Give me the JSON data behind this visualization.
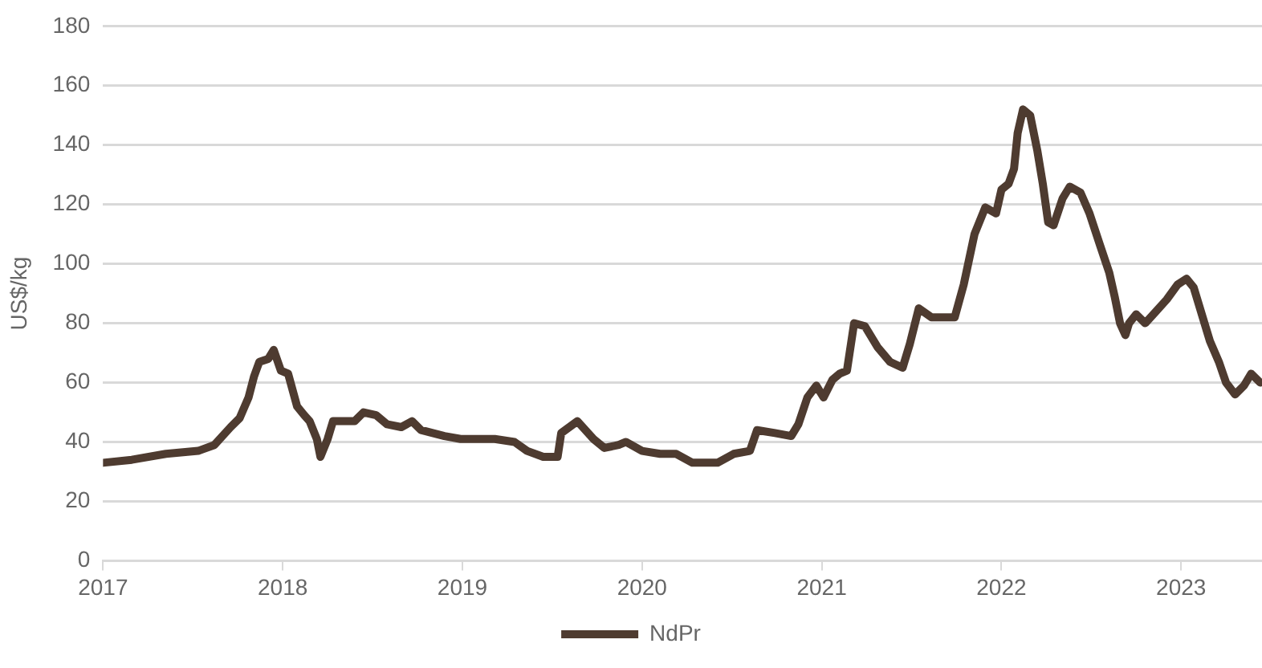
{
  "chart_data": {
    "type": "line",
    "ylabel": "US$/kg",
    "xlim": [
      2017,
      2023.45
    ],
    "xticks": [
      2017,
      2018,
      2019,
      2020,
      2021,
      2022,
      2023
    ],
    "ylim": [
      0,
      180
    ],
    "yticks": [
      0,
      20,
      40,
      60,
      80,
      100,
      120,
      140,
      160,
      180
    ],
    "grid": "y",
    "legend": "bottom",
    "marker": "none",
    "line_style": "solid",
    "series": [
      {
        "name": "NdPr",
        "color": "#4e3b30",
        "x": [
          2017,
          2017.16,
          2017.35,
          2017.53,
          2017.62,
          2017.71,
          2017.76,
          2017.81,
          2017.84,
          2017.87,
          2017.92,
          2017.95,
          2017.99,
          2018.03,
          2018.08,
          2018.12,
          2018.15,
          2018.19,
          2018.21,
          2018.25,
          2018.28,
          2018.4,
          2018.45,
          2018.52,
          2018.58,
          2018.66,
          2018.72,
          2018.77,
          2018.9,
          2018.99,
          2019.18,
          2019.29,
          2019.36,
          2019.45,
          2019.53,
          2019.55,
          2019.64,
          2019.73,
          2019.79,
          2019.87,
          2019.91,
          2020,
          2020.1,
          2020.19,
          2020.28,
          2020.42,
          2020.51,
          2020.6,
          2020.64,
          2020.74,
          2020.83,
          2020.87,
          2020.92,
          2020.97,
          2021.01,
          2021.06,
          2021.1,
          2021.14,
          2021.18,
          2021.24,
          2021.31,
          2021.38,
          2021.45,
          2021.49,
          2021.54,
          2021.61,
          2021.74,
          2021.79,
          2021.85,
          2021.91,
          2021.97,
          2022,
          2022.04,
          2022.07,
          2022.09,
          2022.12,
          2022.16,
          2022.2,
          2022.23,
          2022.26,
          2022.29,
          2022.34,
          2022.38,
          2022.44,
          2022.49,
          2022.55,
          2022.6,
          2022.63,
          2022.66,
          2022.69,
          2022.71,
          2022.75,
          2022.8,
          2022.86,
          2022.92,
          2022.98,
          2023.03,
          2023.07,
          2023.12,
          2023.16,
          2023.21,
          2023.25,
          2023.3,
          2023.35,
          2023.39,
          2023.44
        ],
        "values": [
          33,
          34,
          36,
          37,
          39,
          45,
          48,
          55,
          62,
          67,
          68,
          71,
          64,
          63,
          52,
          49,
          47,
          41,
          35,
          41,
          47,
          47,
          50,
          49,
          46,
          45,
          47,
          44,
          42,
          41,
          41,
          40,
          37,
          35,
          35,
          43,
          47,
          41,
          38,
          39,
          40,
          37,
          36,
          36,
          33,
          33,
          36,
          37,
          44,
          43,
          42,
          46,
          55,
          59,
          55,
          61,
          63,
          64,
          80,
          79,
          72,
          67,
          65,
          73,
          85,
          82,
          82,
          93,
          110,
          119,
          117,
          125,
          127,
          132,
          144,
          152,
          150,
          138,
          127,
          114,
          113,
          122,
          126,
          124,
          117,
          106,
          97,
          89,
          80,
          76,
          80,
          83,
          80,
          84,
          88,
          93,
          95,
          92,
          82,
          74,
          67,
          60,
          56,
          59,
          63,
          60
        ]
      }
    ]
  }
}
